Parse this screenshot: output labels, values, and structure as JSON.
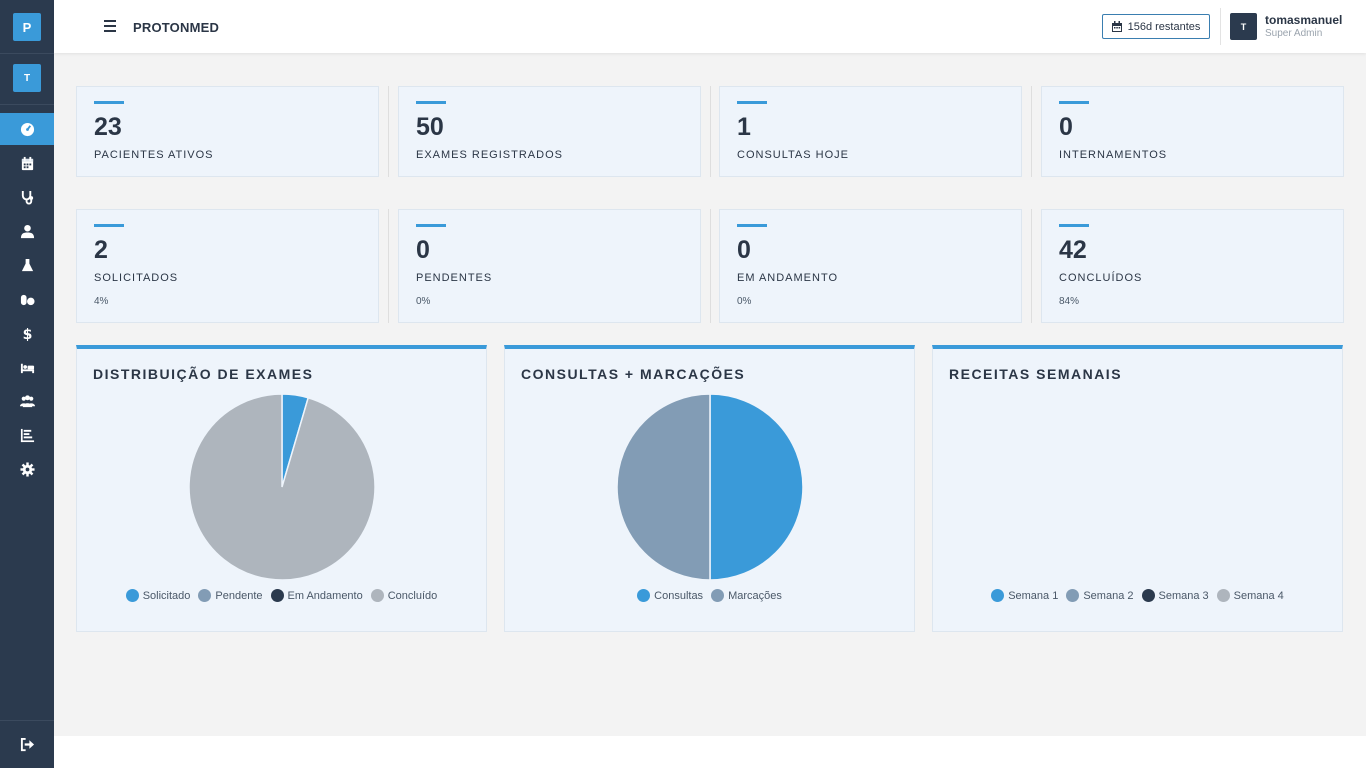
{
  "sidebar": {
    "logo": "P",
    "avatar": "T",
    "icons": [
      "dashboard-icon",
      "calendar-icon",
      "stethoscope-icon",
      "doctor-icon",
      "flask-icon",
      "pills-icon",
      "dollar-icon",
      "bed-icon",
      "users-icon",
      "chart-icon",
      "gear-icon"
    ],
    "logout_icon": "sign-out-icon"
  },
  "header": {
    "brand": "PROTONMED",
    "days_remaining": "156d restantes",
    "user_initial": "T",
    "user_name": "tomasmanuel",
    "user_role": "Super Admin"
  },
  "stats_row1": [
    {
      "value": "23",
      "label": "PACIENTES ATIVOS"
    },
    {
      "value": "50",
      "label": "EXAMES REGISTRADOS"
    },
    {
      "value": "1",
      "label": "CONSULTAS HOJE"
    },
    {
      "value": "0",
      "label": "INTERNAMENTOS"
    }
  ],
  "stats_row2": [
    {
      "value": "2",
      "label": "SOLICITADOS",
      "pct": "4%"
    },
    {
      "value": "0",
      "label": "PENDENTES",
      "pct": "0%"
    },
    {
      "value": "0",
      "label": "EM ANDAMENTO",
      "pct": "0%"
    },
    {
      "value": "42",
      "label": "CONCLUÍDOS",
      "pct": "84%"
    }
  ],
  "colors": {
    "blue": "#3a9ad9",
    "slate": "#829cb5",
    "dark": "#2b3a4e",
    "gray": "#aeb5bd"
  },
  "chart_data": [
    {
      "type": "pie",
      "title": "DISTRIBUIÇÃO DE EXAMES",
      "categories": [
        "Solicitado",
        "Pendente",
        "Em Andamento",
        "Concluído"
      ],
      "values": [
        2,
        0,
        0,
        42
      ],
      "colors": [
        "#3a9ad9",
        "#829cb5",
        "#2b3a4e",
        "#aeb5bd"
      ],
      "legend": "bottom"
    },
    {
      "type": "pie",
      "title": "CONSULTAS + MARCAÇÕES",
      "categories": [
        "Consultas",
        "Marcações"
      ],
      "values": [
        1,
        1
      ],
      "colors": [
        "#3a9ad9",
        "#829cb5"
      ],
      "legend": "bottom"
    },
    {
      "type": "pie",
      "title": "RECEITAS SEMANAIS",
      "categories": [
        "Semana 1",
        "Semana 2",
        "Semana 3",
        "Semana 4"
      ],
      "values": [
        0,
        0,
        0,
        0
      ],
      "colors": [
        "#3a9ad9",
        "#829cb5",
        "#2b3a4e",
        "#aeb5bd"
      ],
      "legend": "bottom"
    }
  ]
}
